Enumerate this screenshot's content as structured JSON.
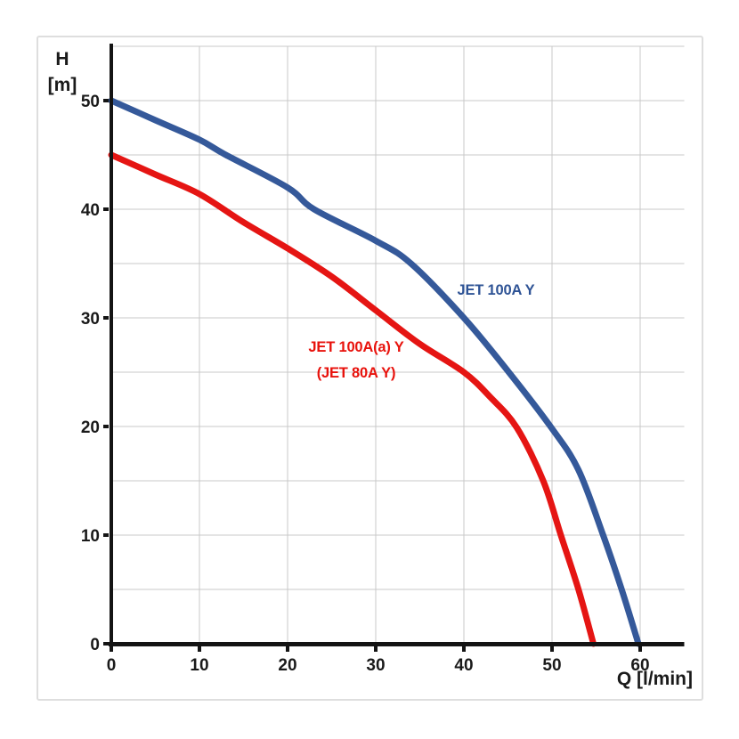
{
  "chart_data": {
    "type": "line",
    "title": "",
    "xlabel": "Q [l/min]",
    "ylabel": "H [m]",
    "ylabel_lines": [
      "H",
      "[m]"
    ],
    "xlim": [
      0,
      65
    ],
    "ylim": [
      0,
      55
    ],
    "x_ticks": [
      0,
      10,
      20,
      30,
      40,
      50,
      60
    ],
    "y_ticks": [
      0,
      10,
      20,
      30,
      40,
      50
    ],
    "grid": {
      "on": true,
      "h_step": 5,
      "v_step": 10,
      "color": "#c8c8c8"
    },
    "axis_color": "#141414",
    "tick_label_color": "#1a1a1a",
    "legend_position": "labels-on-chart",
    "series": [
      {
        "name": "JET 100A Y",
        "color": "#35599A",
        "label_color": "#2E5395",
        "label_lines": [
          "JET 100A Y"
        ],
        "points": [
          [
            0,
            50
          ],
          [
            5,
            48.2
          ],
          [
            10,
            46.4
          ],
          [
            13,
            45
          ],
          [
            20,
            42
          ],
          [
            23,
            40
          ],
          [
            30,
            37.1
          ],
          [
            34,
            35
          ],
          [
            40,
            30
          ],
          [
            45,
            25.1
          ],
          [
            50,
            19.8
          ],
          [
            53,
            16
          ],
          [
            55.8,
            10
          ],
          [
            57.9,
            5
          ],
          [
            59.8,
            0
          ]
        ]
      },
      {
        "name": "JET 100A(a) Y (JET 80A Y)",
        "color": "#E51513",
        "label_color": "#E8120C",
        "label_lines": [
          "JET 100A(a) Y",
          "(JET 80A Y)"
        ],
        "points": [
          [
            0,
            45
          ],
          [
            5,
            43.2
          ],
          [
            10,
            41.4
          ],
          [
            15,
            38.8
          ],
          [
            20,
            36.4
          ],
          [
            25,
            33.8
          ],
          [
            30,
            30.7
          ],
          [
            35,
            27.6
          ],
          [
            40,
            25
          ],
          [
            43,
            22.7
          ],
          [
            46,
            19.9
          ],
          [
            49,
            15
          ],
          [
            51,
            10
          ],
          [
            53,
            5
          ],
          [
            54.7,
            0
          ]
        ]
      }
    ]
  }
}
